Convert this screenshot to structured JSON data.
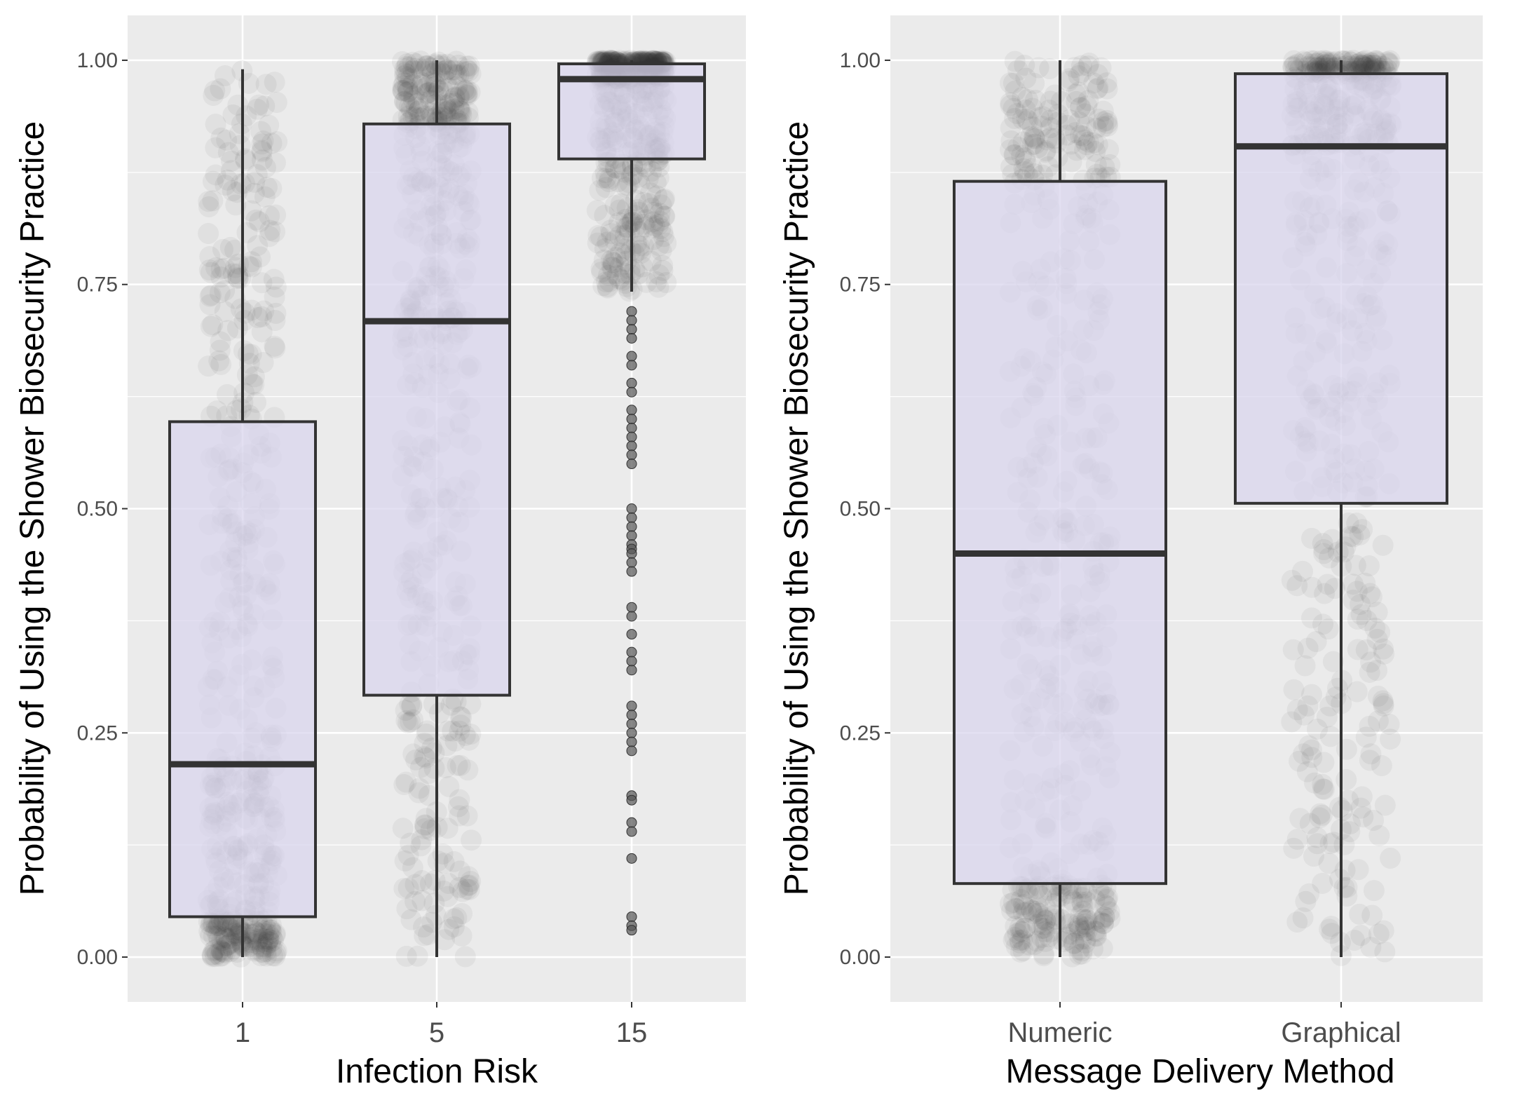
{
  "chart_data": [
    {
      "type": "box",
      "xlabel": "Infection Risk",
      "ylabel": "Probability of Using the Shower Biosecurity Practice",
      "ylim": [
        -0.05,
        1.05
      ],
      "yticks": [
        "0.00",
        "0.25",
        "0.50",
        "0.75",
        "1.00"
      ],
      "grid": true,
      "categories": [
        "1",
        "5",
        "15"
      ],
      "boxes": [
        {
          "category": "1",
          "whisker_low": 0.0,
          "q1": 0.045,
          "median": 0.215,
          "q3": 0.597,
          "whisker_high": 0.99,
          "outliers": []
        },
        {
          "category": "5",
          "whisker_low": 0.0,
          "q1": 0.292,
          "median": 0.709,
          "q3": 0.929,
          "whisker_high": 1.0,
          "outliers": []
        },
        {
          "category": "15",
          "whisker_low": 0.742,
          "q1": 0.89,
          "median": 0.979,
          "q3": 0.996,
          "whisker_high": 1.0,
          "outliers": [
            0.72,
            0.71,
            0.7,
            0.69,
            0.67,
            0.66,
            0.64,
            0.63,
            0.61,
            0.6,
            0.59,
            0.58,
            0.57,
            0.56,
            0.55,
            0.5,
            0.49,
            0.48,
            0.47,
            0.46,
            0.455,
            0.45,
            0.44,
            0.43,
            0.39,
            0.38,
            0.36,
            0.34,
            0.33,
            0.32,
            0.28,
            0.27,
            0.26,
            0.25,
            0.24,
            0.23,
            0.18,
            0.175,
            0.15,
            0.14,
            0.11,
            0.045,
            0.035,
            0.03
          ]
        }
      ]
    },
    {
      "type": "box",
      "xlabel": "Message Delivery Method",
      "ylabel": "Probability of Using the Shower Biosecurity Practice",
      "ylim": [
        -0.05,
        1.05
      ],
      "yticks": [
        "0.00",
        "0.25",
        "0.50",
        "0.75",
        "1.00"
      ],
      "grid": true,
      "categories": [
        "Numeric",
        "Graphical"
      ],
      "boxes": [
        {
          "category": "Numeric",
          "whisker_low": 0.0,
          "q1": 0.082,
          "median": 0.45,
          "q3": 0.865,
          "whisker_high": 1.0,
          "outliers": []
        },
        {
          "category": "Graphical",
          "whisker_low": 0.0,
          "q1": 0.506,
          "median": 0.904,
          "q3": 0.985,
          "whisker_high": 1.0,
          "outliers": []
        }
      ]
    }
  ],
  "colors": {
    "panel_background": "#ebebeb",
    "grid": "#ffffff",
    "box_fill": "#d9d6ee",
    "box_stroke": "#333333",
    "jitter_point": "#333333"
  }
}
